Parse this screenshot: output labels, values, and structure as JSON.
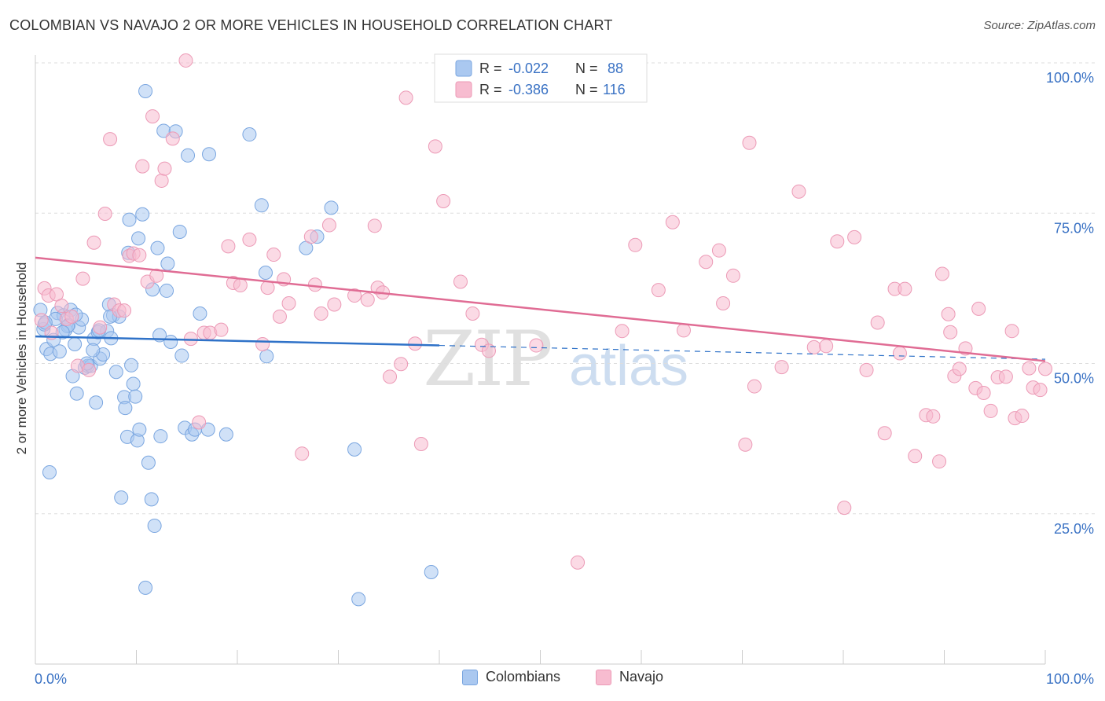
{
  "title": "COLOMBIAN VS NAVAJO 2 OR MORE VEHICLES IN HOUSEHOLD CORRELATION CHART",
  "source": "Source: ZipAtlas.com",
  "watermark": {
    "zip": "ZIP",
    "atlas": "atlas"
  },
  "colors": {
    "blue_fill": "#aac8f0",
    "blue_stroke": "#7aa6e0",
    "blue_line": "#2f72c8",
    "pink_fill": "#f7bcd0",
    "pink_stroke": "#ec9ab6",
    "pink_line": "#e06c94",
    "accent_text": "#3a72c4",
    "grid": "#dddddd"
  },
  "legend_stats": [
    {
      "series": "Colombians",
      "r_label": "R =",
      "r_value": "-0.022",
      "n_label": "N =",
      "n_value": "88"
    },
    {
      "series": "Navajo",
      "r_label": "R =",
      "r_value": "-0.386",
      "n_label": "N =",
      "n_value": "116"
    }
  ],
  "chart_data": {
    "type": "scatter",
    "title": "COLOMBIAN VS NAVAJO 2 OR MORE VEHICLES IN HOUSEHOLD CORRELATION CHART",
    "xlabel": "",
    "ylabel": "2 or more Vehicles in Household",
    "xlim": [
      0,
      100
    ],
    "ylim": [
      0,
      103
    ],
    "x_tick_labels": [
      "0.0%",
      "100.0%"
    ],
    "y_ticks": [
      25,
      50,
      75,
      100
    ],
    "y_tick_labels": [
      "25.0%",
      "50.0%",
      "75.0%",
      "100.0%"
    ],
    "legend": [
      "Colombians",
      "Navajo"
    ],
    "series": [
      {
        "name": "Colombians",
        "r": -0.022,
        "n": 88,
        "trend": {
          "x0": 0,
          "y0": 54.5,
          "x1": 40,
          "y1": 53.0,
          "dash_to_x": 100,
          "dash_to_y": 50.7
        },
        "points": [
          [
            0.5,
            58.9
          ],
          [
            0.8,
            55.7
          ],
          [
            0.9,
            56.5
          ],
          [
            1.1,
            52.4
          ],
          [
            1.4,
            31.9
          ],
          [
            1.5,
            51.6
          ],
          [
            1.8,
            53.9
          ],
          [
            2.2,
            58.4
          ],
          [
            2.4,
            52.0
          ],
          [
            2.8,
            58.0
          ],
          [
            3.0,
            55.6
          ],
          [
            3.3,
            56.4
          ],
          [
            3.5,
            58.9
          ],
          [
            3.7,
            47.9
          ],
          [
            3.9,
            53.2
          ],
          [
            4.1,
            45.0
          ],
          [
            4.3,
            56.0
          ],
          [
            4.6,
            57.3
          ],
          [
            4.9,
            49.3
          ],
          [
            5.2,
            49.6
          ],
          [
            5.5,
            49.6
          ],
          [
            5.8,
            54.1
          ],
          [
            6.0,
            43.5
          ],
          [
            6.2,
            55.2
          ],
          [
            6.4,
            50.8
          ],
          [
            6.7,
            51.5
          ],
          [
            7.1,
            55.4
          ],
          [
            7.3,
            59.8
          ],
          [
            7.5,
            54.2
          ],
          [
            7.7,
            58.0
          ],
          [
            8.0,
            48.6
          ],
          [
            8.3,
            57.8
          ],
          [
            8.5,
            27.7
          ],
          [
            8.8,
            44.4
          ],
          [
            9.1,
            37.8
          ],
          [
            9.3,
            73.9
          ],
          [
            9.5,
            49.7
          ],
          [
            9.7,
            46.6
          ],
          [
            9.9,
            44.5
          ],
          [
            10.1,
            37.2
          ],
          [
            10.3,
            39.0
          ],
          [
            10.6,
            74.8
          ],
          [
            10.9,
            95.3
          ],
          [
            11.2,
            33.5
          ],
          [
            11.6,
            62.3
          ],
          [
            11.8,
            23.0
          ],
          [
            12.1,
            69.2
          ],
          [
            12.4,
            37.9
          ],
          [
            12.7,
            88.7
          ],
          [
            13.1,
            66.6
          ],
          [
            13.4,
            53.6
          ],
          [
            13.9,
            88.6
          ],
          [
            14.3,
            71.9
          ],
          [
            14.5,
            51.3
          ],
          [
            14.8,
            39.3
          ],
          [
            15.1,
            84.6
          ],
          [
            15.5,
            38.2
          ],
          [
            16.3,
            58.3
          ],
          [
            17.2,
            84.8
          ],
          [
            18.9,
            38.2
          ],
          [
            21.2,
            88.1
          ],
          [
            22.4,
            76.3
          ],
          [
            22.8,
            65.1
          ],
          [
            26.8,
            69.2
          ],
          [
            27.9,
            71.1
          ],
          [
            29.3,
            75.9
          ],
          [
            31.6,
            35.7
          ],
          [
            39.2,
            15.3
          ],
          [
            32.0,
            10.8
          ],
          [
            10.9,
            12.7
          ],
          [
            11.5,
            27.4
          ],
          [
            10.2,
            70.8
          ],
          [
            9.2,
            68.4
          ],
          [
            13.0,
            62.1
          ],
          [
            12.3,
            54.7
          ],
          [
            7.4,
            57.8
          ],
          [
            5.1,
            50.0
          ],
          [
            5.7,
            52.2
          ],
          [
            6.3,
            55.5
          ],
          [
            3.2,
            56.2
          ],
          [
            4.0,
            58.1
          ],
          [
            2.0,
            57.4
          ],
          [
            2.7,
            55.2
          ],
          [
            1.0,
            56.8
          ],
          [
            8.9,
            42.6
          ],
          [
            15.8,
            39.0
          ],
          [
            17.1,
            39.0
          ],
          [
            22.9,
            51.2
          ]
        ]
      },
      {
        "name": "Navajo",
        "r": -0.386,
        "n": 116,
        "trend": {
          "x0": 0,
          "y0": 67.6,
          "x1": 100,
          "y1": 50.4
        },
        "points": [
          [
            0.6,
            57.2
          ],
          [
            0.9,
            62.5
          ],
          [
            1.3,
            61.3
          ],
          [
            1.6,
            55.1
          ],
          [
            2.1,
            61.5
          ],
          [
            2.6,
            59.6
          ],
          [
            3.1,
            57.4
          ],
          [
            3.6,
            57.8
          ],
          [
            4.2,
            49.6
          ],
          [
            4.7,
            64.1
          ],
          [
            5.3,
            48.9
          ],
          [
            5.8,
            70.1
          ],
          [
            6.4,
            56.0
          ],
          [
            6.9,
            74.9
          ],
          [
            7.4,
            87.3
          ],
          [
            7.8,
            59.8
          ],
          [
            8.3,
            58.8
          ],
          [
            8.8,
            58.8
          ],
          [
            9.3,
            67.9
          ],
          [
            9.7,
            68.3
          ],
          [
            10.3,
            68.0
          ],
          [
            10.6,
            82.8
          ],
          [
            11.1,
            63.6
          ],
          [
            11.6,
            91.1
          ],
          [
            12.0,
            64.6
          ],
          [
            12.5,
            80.4
          ],
          [
            12.8,
            82.4
          ],
          [
            13.6,
            87.4
          ],
          [
            14.9,
            100.4
          ],
          [
            15.4,
            54.1
          ],
          [
            16.2,
            40.2
          ],
          [
            16.7,
            55.1
          ],
          [
            17.3,
            55.1
          ],
          [
            18.4,
            55.6
          ],
          [
            19.1,
            69.5
          ],
          [
            19.6,
            63.4
          ],
          [
            20.3,
            63.0
          ],
          [
            21.2,
            70.6
          ],
          [
            22.5,
            53.2
          ],
          [
            23.0,
            62.6
          ],
          [
            23.6,
            68.1
          ],
          [
            24.2,
            57.8
          ],
          [
            24.6,
            64.0
          ],
          [
            25.1,
            60.0
          ],
          [
            26.4,
            35.0
          ],
          [
            27.3,
            71.1
          ],
          [
            27.7,
            63.1
          ],
          [
            28.3,
            58.3
          ],
          [
            29.1,
            73.0
          ],
          [
            29.6,
            59.8
          ],
          [
            31.6,
            61.3
          ],
          [
            32.9,
            60.6
          ],
          [
            33.6,
            72.9
          ],
          [
            33.9,
            62.6
          ],
          [
            34.4,
            61.8
          ],
          [
            35.1,
            47.8
          ],
          [
            36.2,
            49.9
          ],
          [
            36.7,
            94.2
          ],
          [
            37.6,
            53.3
          ],
          [
            38.2,
            36.6
          ],
          [
            39.6,
            86.1
          ],
          [
            40.4,
            77.0
          ],
          [
            42.1,
            63.6
          ],
          [
            43.3,
            58.3
          ],
          [
            44.2,
            53.1
          ],
          [
            44.9,
            52.1
          ],
          [
            49.6,
            53.0
          ],
          [
            53.7,
            16.9
          ],
          [
            58.1,
            55.4
          ],
          [
            59.4,
            69.7
          ],
          [
            61.7,
            62.2
          ],
          [
            63.1,
            73.5
          ],
          [
            64.2,
            55.5
          ],
          [
            66.4,
            66.9
          ],
          [
            67.7,
            68.8
          ],
          [
            68.1,
            60.0
          ],
          [
            69.1,
            64.6
          ],
          [
            70.3,
            36.5
          ],
          [
            70.7,
            86.7
          ],
          [
            71.2,
            46.2
          ],
          [
            73.9,
            49.4
          ],
          [
            75.6,
            78.6
          ],
          [
            77.1,
            52.7
          ],
          [
            78.3,
            52.9
          ],
          [
            79.4,
            70.3
          ],
          [
            80.1,
            26.0
          ],
          [
            81.1,
            71.0
          ],
          [
            82.3,
            48.9
          ],
          [
            83.4,
            56.8
          ],
          [
            84.1,
            38.4
          ],
          [
            85.1,
            62.4
          ],
          [
            85.6,
            51.7
          ],
          [
            86.1,
            62.4
          ],
          [
            87.1,
            34.6
          ],
          [
            88.2,
            41.4
          ],
          [
            88.9,
            41.2
          ],
          [
            89.5,
            33.7
          ],
          [
            89.8,
            64.9
          ],
          [
            90.4,
            58.2
          ],
          [
            90.6,
            55.2
          ],
          [
            91.0,
            47.9
          ],
          [
            91.5,
            49.1
          ],
          [
            92.1,
            52.5
          ],
          [
            93.1,
            45.9
          ],
          [
            93.4,
            59.1
          ],
          [
            93.9,
            45.1
          ],
          [
            94.6,
            42.1
          ],
          [
            95.3,
            47.7
          ],
          [
            96.1,
            47.8
          ],
          [
            96.7,
            55.4
          ],
          [
            97.0,
            40.9
          ],
          [
            97.7,
            41.3
          ],
          [
            98.4,
            49.2
          ],
          [
            98.8,
            46.0
          ],
          [
            99.5,
            45.6
          ],
          [
            100.0,
            49.1
          ]
        ]
      }
    ]
  }
}
